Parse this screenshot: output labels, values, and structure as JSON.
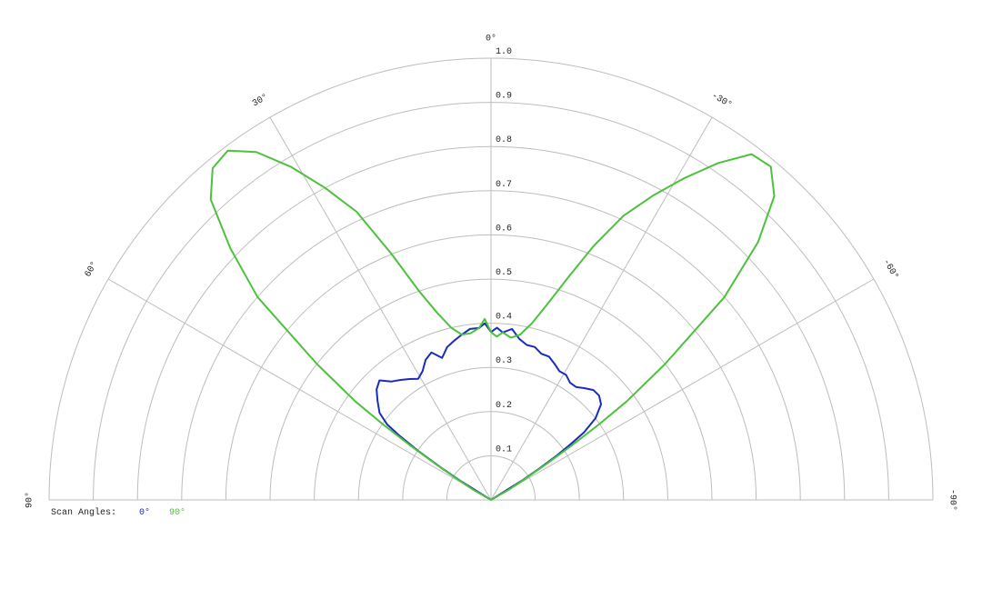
{
  "chart_data": {
    "type": "polar",
    "thetalim": [
      -90,
      90
    ],
    "thetaticks": [
      {
        "value": 90,
        "label": "90°"
      },
      {
        "value": 60,
        "label": "60°"
      },
      {
        "value": 30,
        "label": "30°"
      },
      {
        "value": 0,
        "label": "0°"
      },
      {
        "value": -30,
        "label": "-30°"
      },
      {
        "value": -60,
        "label": "-60°"
      },
      {
        "value": -90,
        "label": "-90°"
      }
    ],
    "rlim": [
      0,
      1
    ],
    "rticks": [
      0.1,
      0.2,
      0.3,
      0.4,
      0.5,
      0.6,
      0.7,
      0.8,
      0.9,
      {
        "value": 1,
        "label": "1.0"
      }
    ],
    "grid": true,
    "grid_color": "#bdbdbd",
    "legend_title": "Scan Angles:",
    "x": [
      90,
      60,
      58,
      57,
      56,
      55,
      54,
      52,
      49,
      46,
      43,
      40,
      37,
      34,
      31,
      28,
      25,
      22,
      19,
      16,
      13,
      10,
      7,
      4,
      2,
      0,
      -2,
      -4,
      -7,
      -10,
      -13,
      -16,
      -19,
      -22,
      -25,
      -28,
      -31,
      -34,
      -37,
      -40,
      -43,
      -46,
      -49,
      -52,
      -54,
      -55,
      -56,
      -57,
      -58,
      -60,
      -90
    ],
    "series": [
      {
        "name": "0°",
        "color": "#1a2cbf",
        "values": [
          0,
          0,
          0.08,
          0.14,
          0.2,
          0.25,
          0.29,
          0.32,
          0.34,
          0.36,
          0.37,
          0.35,
          0.34,
          0.33,
          0.32,
          0.33,
          0.35,
          0.36,
          0.34,
          0.36,
          0.37,
          0.38,
          0.39,
          0.39,
          0.4,
          0.38,
          0.39,
          0.38,
          0.39,
          0.37,
          0.36,
          0.36,
          0.35,
          0.35,
          0.34,
          0.33,
          0.33,
          0.32,
          0.32,
          0.33,
          0.34,
          0.34,
          0.33,
          0.3,
          0.26,
          0.22,
          0.18,
          0.13,
          0.08,
          0,
          0
        ]
      },
      {
        "name": "90°",
        "color": "#4cc23c",
        "values": [
          0,
          0.05,
          0.1,
          0.15,
          0.22,
          0.3,
          0.38,
          0.5,
          0.7,
          0.82,
          0.93,
          0.98,
          0.99,
          0.95,
          0.88,
          0.8,
          0.72,
          0.6,
          0.5,
          0.44,
          0.4,
          0.38,
          0.38,
          0.39,
          0.41,
          0.38,
          0.37,
          0.38,
          0.37,
          0.38,
          0.41,
          0.46,
          0.53,
          0.62,
          0.71,
          0.78,
          0.85,
          0.92,
          0.98,
          0.985,
          0.94,
          0.84,
          0.7,
          0.5,
          0.38,
          0.3,
          0.22,
          0.15,
          0.1,
          0.05,
          0
        ]
      }
    ]
  }
}
